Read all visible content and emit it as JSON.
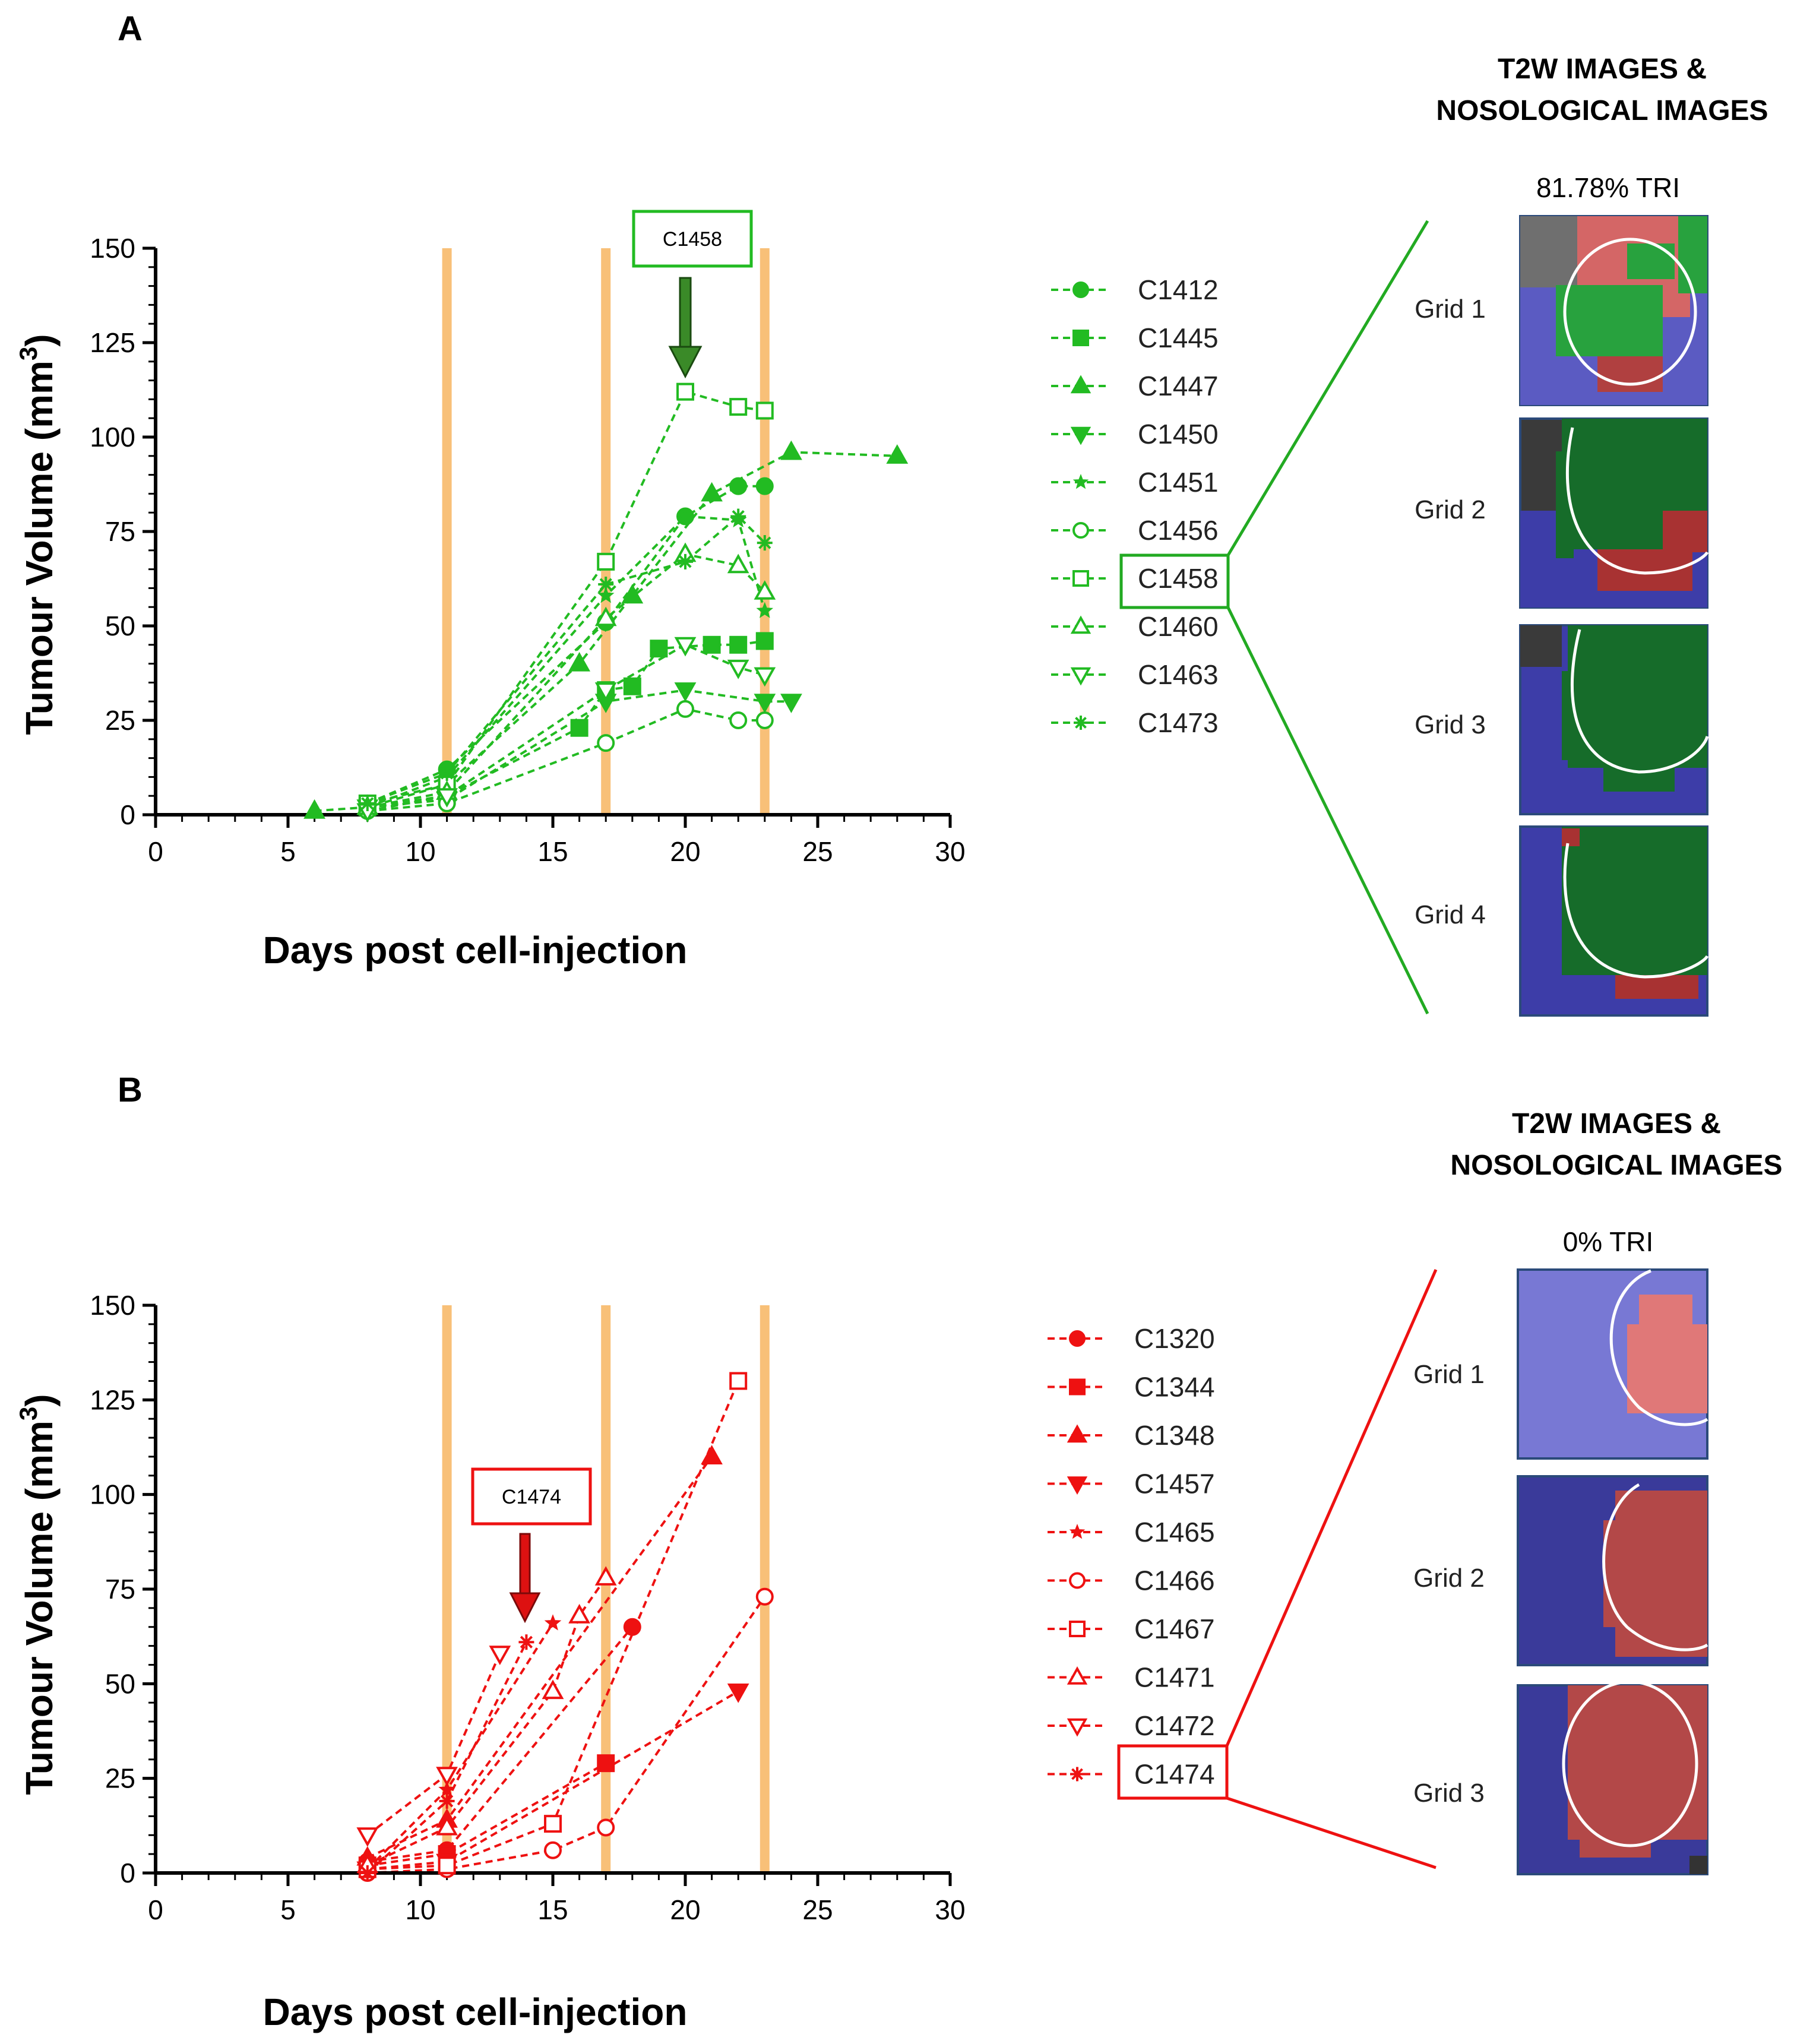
{
  "chart_data": [
    {
      "type": "line",
      "panel": "A",
      "color": "#22bb22",
      "title": "",
      "xlabel": "Days post cell-injection",
      "ylabel": "Tumour Volume (mm3)",
      "ylabel_main": "Tumour Volume (mm",
      "ylabel_sup": "3",
      "ylabel_end": ")",
      "xlim": [
        0,
        30
      ],
      "ylim": [
        0,
        150
      ],
      "xticks": [
        "0",
        "5",
        "10",
        "15",
        "20",
        "25",
        "30"
      ],
      "yticks": [
        "0",
        "25",
        "50",
        "75",
        "100",
        "125",
        "150"
      ],
      "treatment_days": [
        11,
        17,
        23
      ],
      "highlight": {
        "label": "C1458",
        "x": 20,
        "y": 112
      },
      "series": [
        {
          "name": "C1412",
          "marker": "circle",
          "filled": true,
          "x": [
            8,
            11,
            17,
            20,
            22,
            23
          ],
          "y": [
            3,
            12,
            51,
            79,
            87,
            87
          ]
        },
        {
          "name": "C1445",
          "marker": "square",
          "filled": true,
          "x": [
            8,
            11,
            16,
            17,
            18,
            19,
            21,
            22,
            23
          ],
          "y": [
            2,
            5,
            23,
            33,
            34,
            44,
            45,
            45,
            46
          ]
        },
        {
          "name": "C1447",
          "marker": "triangle-up",
          "filled": true,
          "x": [
            6,
            8,
            11,
            16,
            18,
            21,
            24,
            28
          ],
          "y": [
            1,
            2,
            8,
            40,
            58,
            85,
            96,
            95
          ]
        },
        {
          "name": "C1450",
          "marker": "triangle-down",
          "filled": true,
          "x": [
            8,
            11,
            17,
            20,
            23,
            24
          ],
          "y": [
            2,
            4,
            30,
            33,
            30,
            30
          ]
        },
        {
          "name": "C1451",
          "marker": "star",
          "filled": true,
          "x": [
            8,
            11,
            17,
            20,
            22,
            23
          ],
          "y": [
            2,
            10,
            58,
            79,
            78,
            54
          ]
        },
        {
          "name": "C1456",
          "marker": "circle",
          "filled": false,
          "x": [
            8,
            11,
            17,
            20,
            22,
            23
          ],
          "y": [
            1,
            3,
            19,
            28,
            25,
            25
          ]
        },
        {
          "name": "C1458",
          "marker": "square",
          "filled": false,
          "x": [
            8,
            11,
            17,
            20,
            22,
            23
          ],
          "y": [
            3,
            8,
            67,
            112,
            108,
            107
          ]
        },
        {
          "name": "C1460",
          "marker": "triangle-up",
          "filled": false,
          "x": [
            8,
            11,
            17,
            20,
            22,
            23
          ],
          "y": [
            2,
            6,
            52,
            69,
            66,
            59
          ]
        },
        {
          "name": "C1463",
          "marker": "triangle-down",
          "filled": false,
          "x": [
            8,
            11,
            17,
            20,
            22,
            23
          ],
          "y": [
            1,
            5,
            33,
            45,
            39,
            37
          ]
        },
        {
          "name": "C1473",
          "marker": "asterisk",
          "filled": true,
          "x": [
            8,
            11,
            17,
            20,
            22,
            23
          ],
          "y": [
            3,
            11,
            61,
            67,
            79,
            72
          ]
        }
      ]
    },
    {
      "type": "line",
      "panel": "B",
      "color": "#ee1111",
      "title": "",
      "xlabel": "Days post cell-injection",
      "ylabel": "Tumour Volume (mm3)",
      "ylabel_main": "Tumour Volume (mm",
      "ylabel_sup": "3",
      "ylabel_end": ")",
      "xlim": [
        0,
        30
      ],
      "ylim": [
        0,
        150
      ],
      "xticks": [
        "0",
        "5",
        "10",
        "15",
        "20",
        "25",
        "30"
      ],
      "yticks": [
        "0",
        "25",
        "50",
        "75",
        "100",
        "125",
        "150"
      ],
      "treatment_days": [
        11,
        17,
        23
      ],
      "highlight": {
        "label": "C1474",
        "x": 14,
        "y": 61
      },
      "series": [
        {
          "name": "C1320",
          "marker": "circle",
          "filled": true,
          "x": [
            8,
            11,
            18
          ],
          "y": [
            3,
            6,
            65
          ]
        },
        {
          "name": "C1344",
          "marker": "square",
          "filled": true,
          "x": [
            8,
            11,
            17
          ],
          "y": [
            2,
            5,
            29
          ]
        },
        {
          "name": "C1348",
          "marker": "triangle-up",
          "filled": true,
          "x": [
            8,
            11,
            21
          ],
          "y": [
            4,
            14,
            110
          ]
        },
        {
          "name": "C1457",
          "marker": "triangle-down",
          "filled": true,
          "x": [
            8,
            11,
            22
          ],
          "y": [
            1,
            3,
            48
          ]
        },
        {
          "name": "C1465",
          "marker": "star",
          "filled": true,
          "x": [
            8,
            11,
            15
          ],
          "y": [
            1,
            22,
            66
          ]
        },
        {
          "name": "C1466",
          "marker": "circle",
          "filled": false,
          "x": [
            8,
            11,
            15,
            17,
            23
          ],
          "y": [
            0,
            1,
            6,
            12,
            73
          ]
        },
        {
          "name": "C1467",
          "marker": "square",
          "filled": false,
          "x": [
            8,
            11,
            15,
            22
          ],
          "y": [
            1,
            2,
            13,
            130
          ]
        },
        {
          "name": "C1471",
          "marker": "triangle-up",
          "filled": false,
          "x": [
            8,
            11,
            15,
            16,
            17
          ],
          "y": [
            2,
            12,
            48,
            68,
            78
          ]
        },
        {
          "name": "C1472",
          "marker": "triangle-down",
          "filled": false,
          "x": [
            8,
            11,
            13
          ],
          "y": [
            10,
            26,
            58
          ]
        },
        {
          "name": "C1474",
          "marker": "asterisk",
          "filled": true,
          "x": [
            8,
            11,
            14
          ],
          "y": [
            0,
            19,
            61
          ]
        }
      ]
    }
  ],
  "panel_a": {
    "letter": "A",
    "side_title_line1": "T2W IMAGES &",
    "side_title_line2": "NOSOLOGICAL IMAGES",
    "tri_label": "81.78% TRI",
    "grids": [
      "Grid 1",
      "Grid 2",
      "Grid 3",
      "Grid 4"
    ],
    "callout": "C1458"
  },
  "panel_b": {
    "letter": "B",
    "side_title_line1": "T2W IMAGES &",
    "side_title_line2": "NOSOLOGICAL IMAGES",
    "tri_label": "0% TRI",
    "grids": [
      "Grid 1",
      "Grid 2",
      "Grid 3"
    ],
    "callout": "C1474"
  },
  "colors": {
    "treatment_bar": "#f8c078",
    "green": "#22bb22",
    "red": "#ee1111",
    "map_red": "#e05a5a",
    "map_green": "#1e9e3a",
    "map_blue": "#5a5ad0"
  }
}
